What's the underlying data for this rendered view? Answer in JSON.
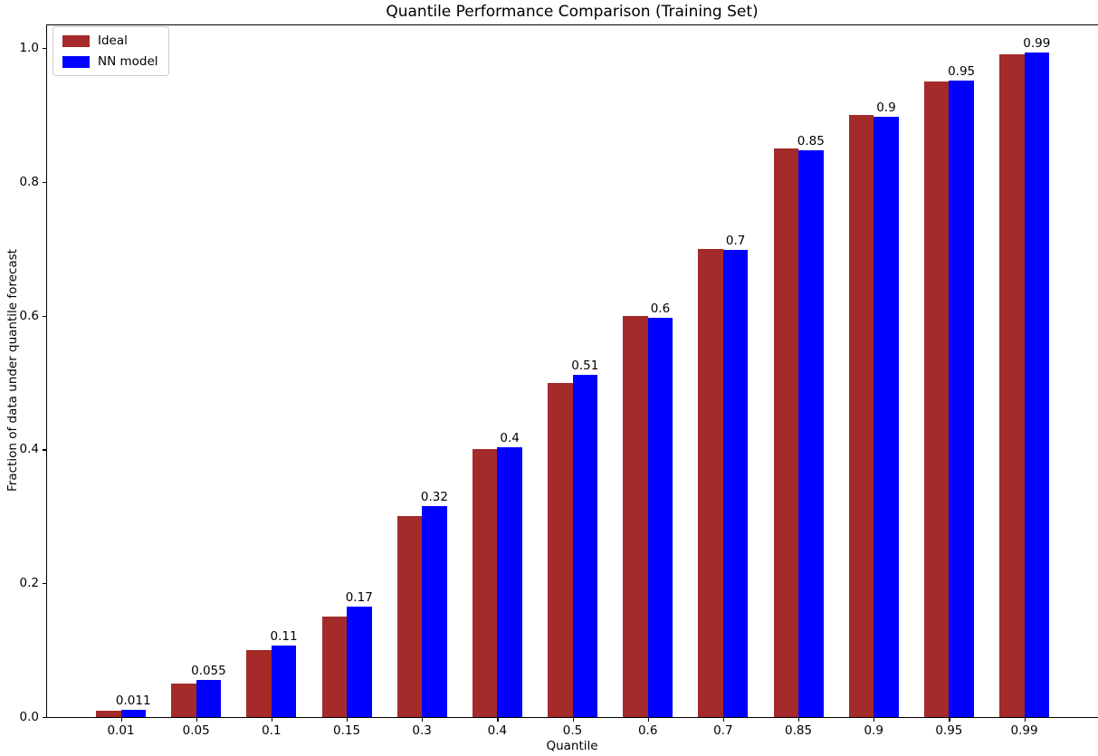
{
  "chart_data": {
    "type": "bar",
    "title": "Quantile Performance Comparison (Training Set)",
    "xlabel": "Quantile",
    "ylabel": "Fraction of data under quantile forecast",
    "categories": [
      "0.01",
      "0.05",
      "0.1",
      "0.15",
      "0.3",
      "0.4",
      "0.5",
      "0.6",
      "0.7",
      "0.85",
      "0.9",
      "0.95",
      "0.99"
    ],
    "series": [
      {
        "name": "Ideal",
        "color": "#a52a2a",
        "values": [
          0.01,
          0.05,
          0.1,
          0.15,
          0.3,
          0.4,
          0.5,
          0.6,
          0.7,
          0.85,
          0.9,
          0.95,
          0.99
        ]
      },
      {
        "name": "NN model",
        "color": "#0000ff",
        "values": [
          0.011,
          0.055,
          0.107,
          0.165,
          0.315,
          0.403,
          0.512,
          0.597,
          0.698,
          0.847,
          0.897,
          0.951,
          0.993
        ]
      }
    ],
    "bar_labels": [
      "0.011",
      "0.055",
      "0.11",
      "0.17",
      "0.32",
      "0.4",
      "0.51",
      "0.6",
      "0.7",
      "0.85",
      "0.9",
      "0.95",
      "0.99"
    ],
    "bar_label_series": "NN model",
    "yticks": [
      "0.0",
      "0.2",
      "0.4",
      "0.6",
      "0.8",
      "1.0"
    ],
    "ylim": [
      0,
      1.035
    ],
    "grid": false,
    "legend_position": "upper left"
  }
}
